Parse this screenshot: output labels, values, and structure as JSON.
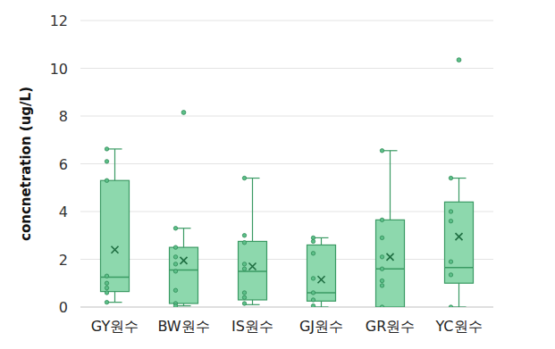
{
  "chart_data": {
    "type": "box",
    "y_label": "concnetration (ug/L)",
    "categories": [
      "GY원수",
      "BW원수",
      "IS원수",
      "GJ원수",
      "GR원수",
      "YC원수"
    ],
    "boxes": [
      {
        "min": 0.2,
        "q1": 0.65,
        "median": 1.25,
        "q3": 5.3,
        "max": 6.62,
        "mean": 2.4,
        "points": [
          6.62,
          6.1,
          5.3,
          1.3,
          1.0,
          0.8,
          0.6,
          0.2
        ],
        "outliers": []
      },
      {
        "min": 0.05,
        "q1": 0.15,
        "median": 1.55,
        "q3": 2.5,
        "max": 3.3,
        "mean": 1.95,
        "points": [
          3.3,
          2.5,
          2.1,
          1.8,
          1.5,
          0.7,
          0.15,
          0.05
        ],
        "outliers": [
          8.15
        ]
      },
      {
        "min": 0.1,
        "q1": 0.3,
        "median": 1.5,
        "q3": 2.75,
        "max": 5.4,
        "mean": 1.7,
        "points": [
          5.4,
          3.0,
          2.7,
          1.8,
          1.6,
          0.6,
          0.4,
          0.15
        ],
        "outliers": []
      },
      {
        "min": 0.0,
        "q1": 0.25,
        "median": 0.6,
        "q3": 2.6,
        "max": 2.9,
        "mean": 1.15,
        "points": [
          2.9,
          2.75,
          2.25,
          1.2,
          0.6,
          0.3,
          0.05
        ],
        "outliers": []
      },
      {
        "min": 0.0,
        "q1": 0.0,
        "median": 1.6,
        "q3": 3.65,
        "max": 6.55,
        "mean": 2.1,
        "points": [
          6.55,
          3.65,
          2.9,
          2.1,
          1.6,
          1.1,
          0.9,
          0.0
        ],
        "outliers": []
      },
      {
        "min": 0.0,
        "q1": 1.0,
        "median": 1.65,
        "q3": 4.4,
        "max": 5.4,
        "mean": 2.95,
        "points": [
          5.4,
          4.0,
          3.6,
          1.9,
          1.35,
          0.0
        ],
        "outliers": [
          10.35
        ]
      }
    ],
    "color": "#8dd8ad",
    "ylim": [
      0,
      12
    ],
    "yticks": [
      0,
      2,
      4,
      6,
      8,
      10,
      12
    ],
    "grid": true
  }
}
